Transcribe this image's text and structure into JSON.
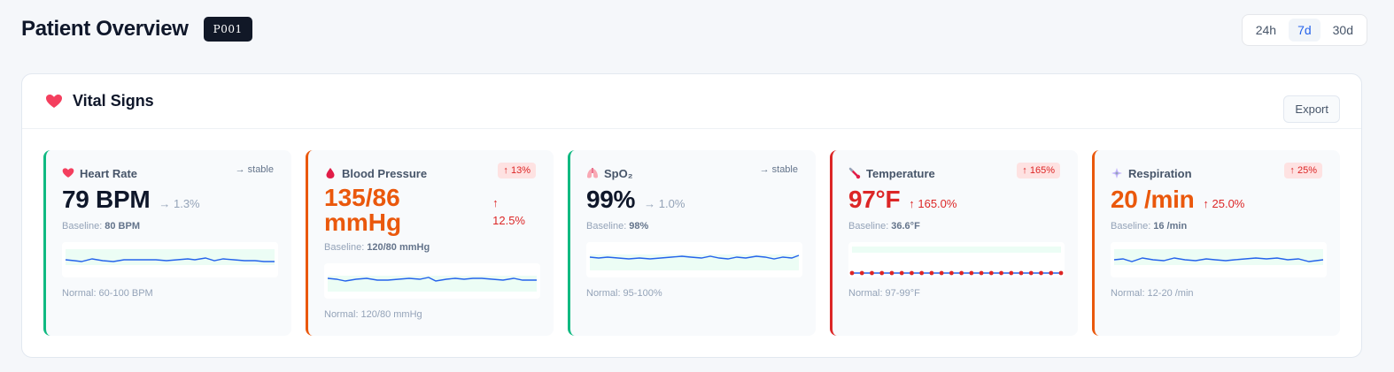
{
  "header": {
    "title": "Patient Overview",
    "patient_id": "P001",
    "ranges": [
      {
        "label": "24h",
        "active": false
      },
      {
        "label": "7d",
        "active": true
      },
      {
        "label": "30d",
        "active": false
      }
    ]
  },
  "panel": {
    "title": "Vital Signs",
    "icon": "heart-icon",
    "export_label": "Export"
  },
  "vitals": [
    {
      "label": "Heart Rate",
      "icon": "heart-icon",
      "trend": "→ stable",
      "value": "79 BPM",
      "change": "→ 1.3%",
      "baseline_label": "Baseline:",
      "baseline": "80 BPM",
      "normal": "Normal: 60-100 BPM",
      "accent": "#10b981"
    },
    {
      "label": "Blood Pressure",
      "icon": "blood-drop-icon",
      "trend": "↑ 13%",
      "value": "135/86 mmHg",
      "change_arrow": "↑",
      "change_pct": "12.5%",
      "baseline_label": "Baseline:",
      "baseline": "120/80 mmHg",
      "normal": "Normal: 120/80 mmHg",
      "accent": "#ea580c"
    },
    {
      "label": "SpO₂",
      "icon": "lungs-icon",
      "trend": "→ stable",
      "value": "99%",
      "change": "→ 1.0%",
      "baseline_label": "Baseline:",
      "baseline": "98%",
      "normal": "Normal: 95-100%",
      "accent": "#10b981"
    },
    {
      "label": "Temperature",
      "icon": "thermometer-icon",
      "trend": "↑ 165%",
      "value": "97°F",
      "change": "↑ 165.0%",
      "baseline_label": "Baseline:",
      "baseline": "36.6°F",
      "normal": "Normal: 97-99°F",
      "accent": "#dc2626"
    },
    {
      "label": "Respiration",
      "icon": "wind-icon",
      "trend": "↑ 25%",
      "value": "20 /min",
      "change": "↑ 25.0%",
      "baseline_label": "Baseline:",
      "baseline": "16 /min",
      "normal": "Normal: 12-20 /min",
      "accent": "#ea580c"
    }
  ],
  "colors": {
    "line": "#2563eb",
    "band": "#ecfdf5",
    "danger": "#dc2626"
  }
}
